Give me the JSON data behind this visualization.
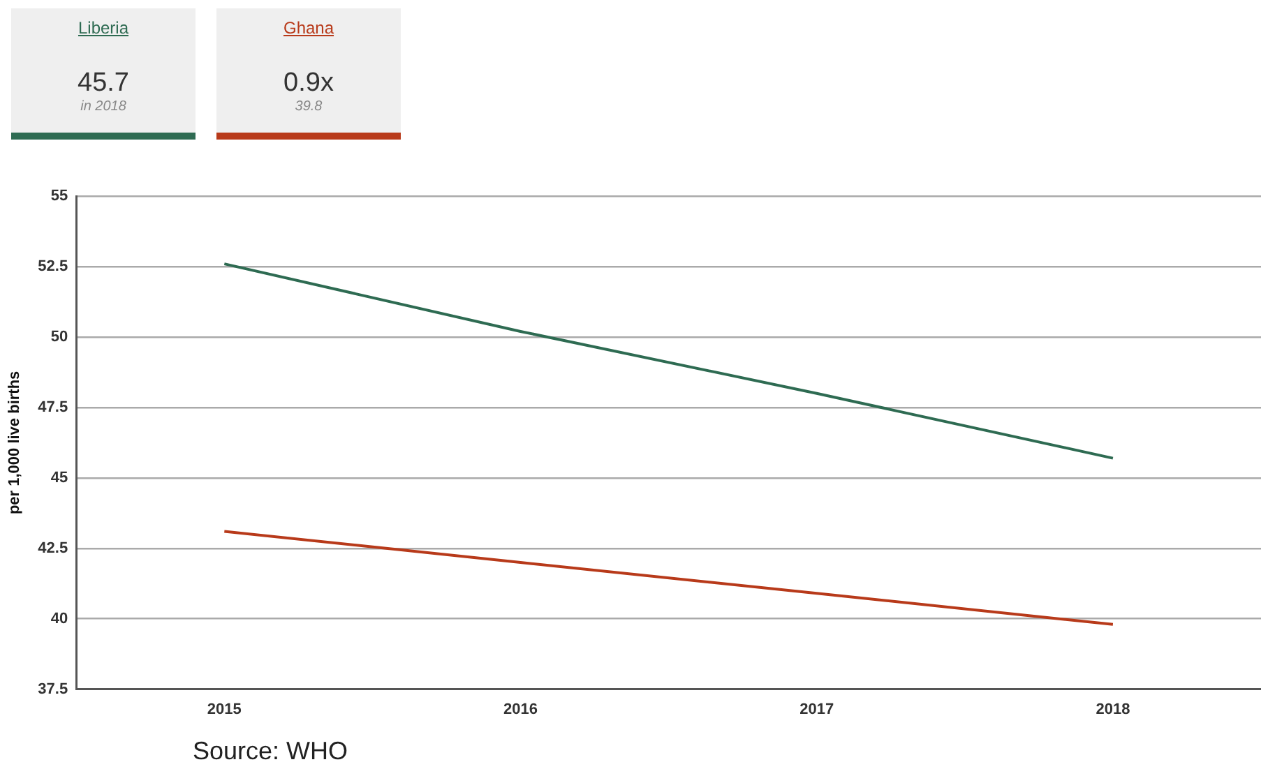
{
  "chart_data": {
    "type": "line",
    "ylabel": "per 1,000 live births",
    "categories": [
      "2015",
      "2016",
      "2017",
      "2018"
    ],
    "series": [
      {
        "name": "Liberia",
        "color": "#2e6b52",
        "values": [
          52.6,
          50.2,
          48.0,
          45.7
        ]
      },
      {
        "name": "Ghana",
        "color": "#b83a1a",
        "values": [
          43.1,
          42.0,
          40.9,
          39.8
        ]
      }
    ],
    "ylim": [
      37.5,
      55
    ],
    "yticks": [
      37.5,
      40,
      42.5,
      45,
      47.5,
      50,
      52.5,
      55
    ],
    "grid": "y",
    "legend": "top left",
    "marker": "none",
    "annotations": [
      "45.7",
      "in 2018",
      "0.9x",
      "39.8",
      "Source: WHO"
    ]
  }
}
